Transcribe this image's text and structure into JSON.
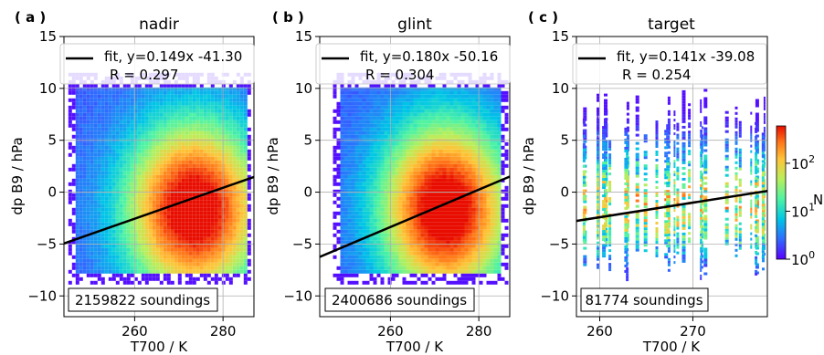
{
  "chart_data": [
    {
      "type": "heatmap",
      "panel_label": "( a )",
      "title": "nadir",
      "xlabel": "T700 / K",
      "ylabel": "dp B9 / hPa",
      "xlim": [
        244,
        287
      ],
      "ylim": [
        -12,
        15
      ],
      "xticks": [
        260,
        280
      ],
      "yticks": [
        -10,
        -5,
        0,
        5,
        10,
        15
      ],
      "grid": true,
      "fit": {
        "slope": 0.149,
        "intercept": -41.3,
        "R": 0.297
      },
      "legend": {
        "line1": "fit, y=0.149x -41.30",
        "line2": "R = 0.297",
        "position": "top"
      },
      "count_label": "2159822 soundings",
      "density": {
        "x_min": 245,
        "x_max": 286,
        "y_min": -8.8,
        "y_max": 11.5,
        "peak_x": 273,
        "peak_y": -1.5
      }
    },
    {
      "type": "heatmap",
      "panel_label": "( b )",
      "title": "glint",
      "xlabel": "T700 / K",
      "ylabel": "dp B9 / hPa",
      "xlim": [
        244,
        287
      ],
      "ylim": [
        -12,
        15
      ],
      "xticks": [
        260,
        280
      ],
      "yticks": [
        -10,
        -5,
        0,
        5,
        10,
        15
      ],
      "grid": true,
      "fit": {
        "slope": 0.18,
        "intercept": -50.16,
        "R": 0.304
      },
      "legend": {
        "line1": "fit, y=0.180x -50.16",
        "line2": "R = 0.304",
        "position": "top"
      },
      "count_label": "2400686 soundings",
      "density": {
        "x_min": 247,
        "x_max": 286,
        "y_min": -8.8,
        "y_max": 11.5,
        "peak_x": 272,
        "peak_y": -1.5
      }
    },
    {
      "type": "heatmap",
      "panel_label": "( c )",
      "title": "target",
      "xlabel": "T700 / K",
      "ylabel": "dp B9 / hPa",
      "xlim": [
        257.5,
        278
      ],
      "ylim": [
        -12,
        15
      ],
      "xticks": [
        260,
        270
      ],
      "yticks": [
        -10,
        -5,
        0,
        5,
        10,
        15
      ],
      "grid": true,
      "fit": {
        "slope": 0.141,
        "intercept": -39.08,
        "R": 0.254
      },
      "legend": {
        "line1": "fit, y=0.141x -39.08",
        "line2": "R = 0.254",
        "position": "top"
      },
      "count_label": "81774 soundings",
      "density": {
        "x_min": 257.5,
        "x_max": 278,
        "y_min": -8.5,
        "y_max": 10,
        "peak_x": 270,
        "peak_y": -1
      }
    }
  ],
  "colorbar": {
    "label": "N",
    "scale": "log",
    "ticks": [
      {
        "base": "10",
        "exp": "0",
        "value": 1
      },
      {
        "base": "10",
        "exp": "1",
        "value": 10
      },
      {
        "base": "10",
        "exp": "2",
        "value": 100
      }
    ],
    "range": [
      1,
      600
    ],
    "colormap": [
      "#5a00ff",
      "#2f6bff",
      "#00c6e6",
      "#4ef3a4",
      "#b8ef5c",
      "#ffc438",
      "#ff7418",
      "#e80d00"
    ]
  }
}
